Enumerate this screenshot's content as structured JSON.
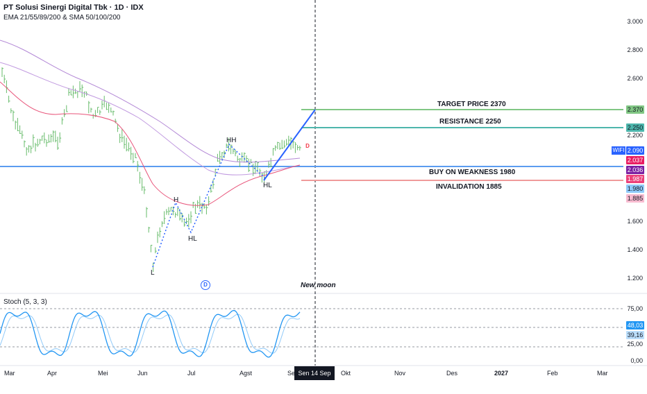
{
  "header": {
    "title": "PT Solusi Sinergi Digital Tbk · 1D · IDX",
    "indicators": "EMA 21/55/89/200 & SMA 50/100/200"
  },
  "levels": {
    "target": "TARGET PRICE 2370",
    "resistance": "RESISTANCE 2250",
    "buy": "BUY ON WEAKNESS 1980",
    "invalidation": "INVALIDATION 1885"
  },
  "patterns": {
    "l": "L",
    "h": "H",
    "hl1": "HL",
    "hh": "HH",
    "hl2": "HL"
  },
  "events": {
    "new_moon": "New moon",
    "dividend_marker": "D",
    "earnings_marker": "D"
  },
  "price_axis": [
    "3.000",
    "2.800",
    "2.600",
    "2.200",
    "1.600",
    "1.400",
    "1.200"
  ],
  "price_badges": {
    "ticker": "WIFI",
    "last": "2.090",
    "target": "2.370",
    "resistance": "2.250",
    "ema1": "2.037",
    "ema2": "2.036",
    "ema3": "1.987",
    "buy": "1.980",
    "invalidation": "1.885"
  },
  "stoch": {
    "label": "Stoch (5, 3, 3)",
    "axis": [
      "75,00",
      "25,00",
      "0,00"
    ],
    "k_value": "48,03",
    "d_value": "39,16"
  },
  "time_axis": [
    "Mar",
    "Apr",
    "Mei",
    "Jun",
    "Jul",
    "Agst",
    "Sep",
    "Okt",
    "Nov",
    "Des",
    "2027",
    "Feb",
    "Mar"
  ],
  "cursor_date": "Sen 14 Sep '26",
  "colors": {
    "target": "#81c784",
    "resistance": "#4db6ac",
    "buy": "#5b9cf0",
    "invalidation": "#ef9a9a",
    "candles": "#66bb6a",
    "ema_pink": "#e8547a",
    "ema_purple": "#b388d6",
    "trend": "#2962ff",
    "stoch_k": "#2196f3",
    "stoch_d": "#90caf9",
    "ticker_bg": "#2962ff",
    "ema1_bg": "#e91e63",
    "ema2_bg": "#7b1fa2",
    "ema3_bg": "#ec407a"
  }
}
